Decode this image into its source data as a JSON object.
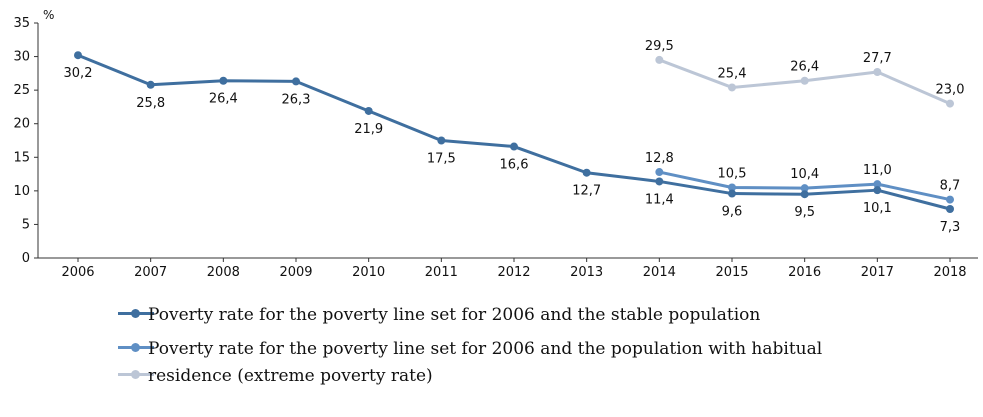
{
  "chart_data": {
    "type": "line",
    "unit": "%",
    "categories": [
      "2006",
      "2007",
      "2008",
      "2009",
      "2010",
      "2011",
      "2012",
      "2013",
      "2014",
      "2015",
      "2016",
      "2017",
      "2018"
    ],
    "ylim": [
      0,
      35
    ],
    "yticks": [
      0,
      5,
      10,
      15,
      20,
      25,
      30,
      35
    ],
    "grid": false,
    "legend_position": "bottom",
    "series": [
      {
        "name": "Poverty rate for the poverty line set for 2006 and the stable population",
        "color": "#3f6f9f",
        "values": [
          30.2,
          25.8,
          26.4,
          26.3,
          21.9,
          17.5,
          16.6,
          12.7,
          11.4,
          9.6,
          9.5,
          10.1,
          7.3
        ],
        "labels": [
          "30,2",
          "25,8",
          "26,4",
          "26,3",
          "21,9",
          "17,5",
          "16,6",
          "12,7",
          "11,4",
          "9,6",
          "9,5",
          "10,1",
          "7,3"
        ],
        "label_side": [
          "below",
          "below",
          "below",
          "below",
          "below",
          "below",
          "below",
          "below",
          "below",
          "below",
          "below",
          "below",
          "below"
        ]
      },
      {
        "name": "Poverty rate for the poverty line set for 2006 and the population with habitual residence (extreme poverty rate)",
        "color": "#5f8fc4",
        "values": [
          null,
          null,
          null,
          null,
          null,
          null,
          null,
          null,
          12.8,
          10.5,
          10.4,
          11.0,
          8.7
        ],
        "labels": [
          null,
          null,
          null,
          null,
          null,
          null,
          null,
          null,
          "12,8",
          "10,5",
          "10,4",
          "11,0",
          "8,7"
        ],
        "label_side": [
          null,
          null,
          null,
          null,
          null,
          null,
          null,
          null,
          "above",
          "above",
          "above",
          "above",
          "above"
        ]
      },
      {
        "name": "residence (extreme poverty rate)",
        "color": "#bcc6d6",
        "values": [
          null,
          null,
          null,
          null,
          null,
          null,
          null,
          null,
          29.5,
          25.4,
          26.4,
          27.7,
          23.0
        ],
        "labels": [
          null,
          null,
          null,
          null,
          null,
          null,
          null,
          null,
          "29,5",
          "25,4",
          "26,4",
          "27,7",
          "23,0"
        ],
        "label_side": [
          null,
          null,
          null,
          null,
          null,
          null,
          null,
          null,
          "above",
          "above",
          "above",
          "above",
          "above"
        ]
      }
    ]
  },
  "legend": {
    "items": [
      {
        "label": "Poverty rate for the poverty line set for 2006 and the stable population",
        "color": "#3f6f9f"
      },
      {
        "label": "Poverty rate for the poverty line set for 2006 and the population with habitual",
        "color": "#5f8fc4"
      },
      {
        "label": "residence (extreme poverty rate)",
        "color": "#bcc6d6"
      }
    ]
  }
}
